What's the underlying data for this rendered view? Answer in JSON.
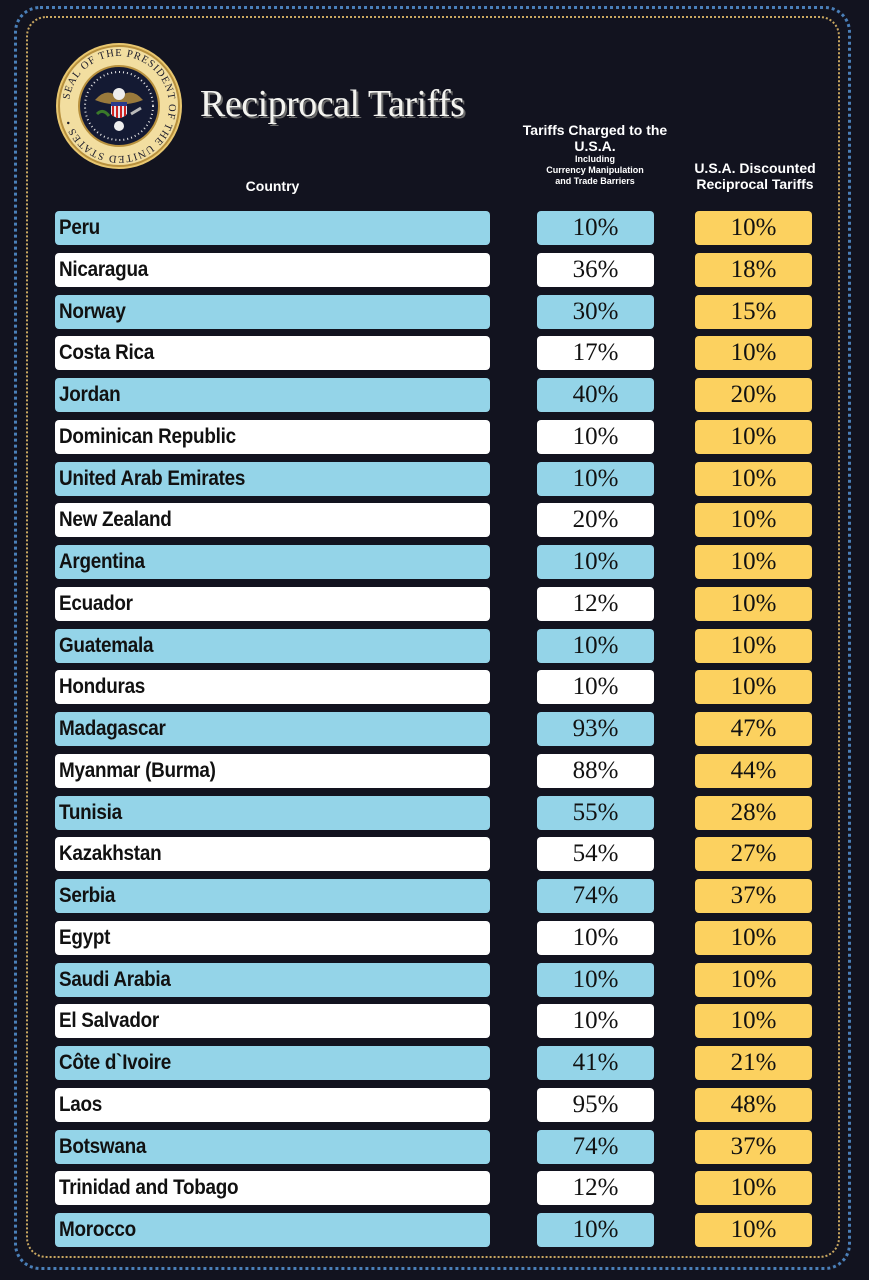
{
  "header": {
    "title": "Reciprocal Tariffs",
    "seal_text": "SEAL OF THE PRESIDENT OF THE UNITED STATES"
  },
  "colors": {
    "background": "#12131f",
    "blue_row": "#94d4e8",
    "white_row": "#ffffff",
    "discounted_cell": "#fcd15f",
    "outer_border": "#4a7fb8",
    "inner_border": "#c9a760"
  },
  "chart_data": {
    "type": "table",
    "title": "Reciprocal Tariffs",
    "columns": {
      "country": "Country",
      "charged": "Tariffs Charged to the U.S.A.",
      "charged_note": [
        "Including",
        "Currency Manipulation",
        "and Trade Barriers"
      ],
      "discounted": "U.S.A. Discounted Reciprocal Tariffs"
    },
    "rows": [
      {
        "country": "Peru",
        "charged": "10%",
        "discounted": "10%"
      },
      {
        "country": "Nicaragua",
        "charged": "36%",
        "discounted": "18%"
      },
      {
        "country": "Norway",
        "charged": "30%",
        "discounted": "15%"
      },
      {
        "country": "Costa Rica",
        "charged": "17%",
        "discounted": "10%"
      },
      {
        "country": "Jordan",
        "charged": "40%",
        "discounted": "20%"
      },
      {
        "country": "Dominican Republic",
        "charged": "10%",
        "discounted": "10%"
      },
      {
        "country": "United Arab Emirates",
        "charged": "10%",
        "discounted": "10%"
      },
      {
        "country": "New Zealand",
        "charged": "20%",
        "discounted": "10%"
      },
      {
        "country": "Argentina",
        "charged": "10%",
        "discounted": "10%"
      },
      {
        "country": "Ecuador",
        "charged": "12%",
        "discounted": "10%"
      },
      {
        "country": "Guatemala",
        "charged": "10%",
        "discounted": "10%"
      },
      {
        "country": "Honduras",
        "charged": "10%",
        "discounted": "10%"
      },
      {
        "country": "Madagascar",
        "charged": "93%",
        "discounted": "47%"
      },
      {
        "country": "Myanmar (Burma)",
        "charged": "88%",
        "discounted": "44%"
      },
      {
        "country": "Tunisia",
        "charged": "55%",
        "discounted": "28%"
      },
      {
        "country": "Kazakhstan",
        "charged": "54%",
        "discounted": "27%"
      },
      {
        "country": "Serbia",
        "charged": "74%",
        "discounted": "37%"
      },
      {
        "country": "Egypt",
        "charged": "10%",
        "discounted": "10%"
      },
      {
        "country": "Saudi Arabia",
        "charged": "10%",
        "discounted": "10%"
      },
      {
        "country": "El Salvador",
        "charged": "10%",
        "discounted": "10%"
      },
      {
        "country": "Côte d`Ivoire",
        "charged": "41%",
        "discounted": "21%"
      },
      {
        "country": "Laos",
        "charged": "95%",
        "discounted": "48%"
      },
      {
        "country": "Botswana",
        "charged": "74%",
        "discounted": "37%"
      },
      {
        "country": "Trinidad and Tobago",
        "charged": "12%",
        "discounted": "10%"
      },
      {
        "country": "Morocco",
        "charged": "10%",
        "discounted": "10%"
      }
    ]
  }
}
